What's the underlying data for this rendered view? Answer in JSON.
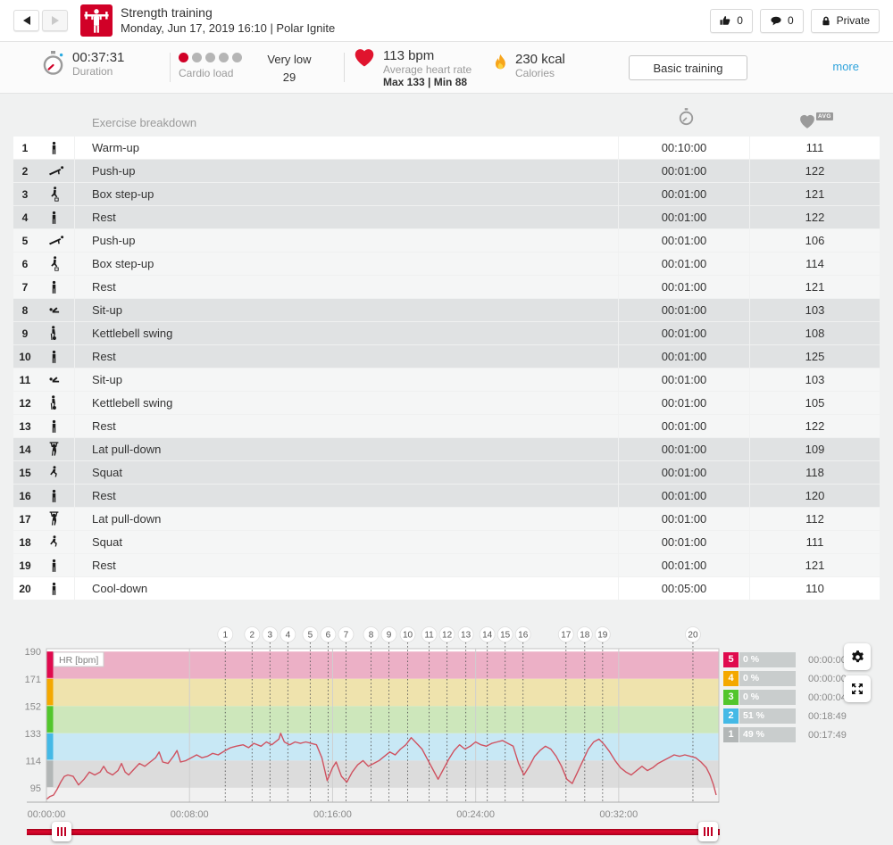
{
  "header": {
    "title": "Strength training",
    "subtitle": "Monday, Jun 17, 2019 16:10  |  Polar Ignite",
    "sport_icon": "strength-training-icon",
    "actions": {
      "likes": "0",
      "comments": "0",
      "privacy": "Private"
    }
  },
  "stats": {
    "duration": {
      "value": "00:37:31",
      "label": "Duration"
    },
    "cardio_load": {
      "label": "Cardio load",
      "level": "Very low",
      "score": "29",
      "dots_total": 5,
      "dots_active": 1
    },
    "heart_rate": {
      "value": "113 bpm",
      "label": "Average heart rate",
      "max_min": "Max 133  |  Min 88"
    },
    "calories": {
      "value": "230 kcal",
      "label": "Calories"
    },
    "training_benefit": "Basic training",
    "more_label": "more"
  },
  "table": {
    "header": {
      "breakdown": "Exercise breakdown",
      "hr_avg_label": "AVG"
    },
    "rows": [
      {
        "num": "1",
        "icon": "person-standing-icon",
        "name": "Warm-up",
        "duration": "00:10:00",
        "avg_hr": "111",
        "shade": "white"
      },
      {
        "num": "2",
        "icon": "push-up-icon",
        "name": "Push-up",
        "duration": "00:01:00",
        "avg_hr": "122",
        "shade": "gray"
      },
      {
        "num": "3",
        "icon": "box-step-up-icon",
        "name": "Box step-up",
        "duration": "00:01:00",
        "avg_hr": "121",
        "shade": "gray"
      },
      {
        "num": "4",
        "icon": "person-standing-icon",
        "name": "Rest",
        "duration": "00:01:00",
        "avg_hr": "122",
        "shade": "gray"
      },
      {
        "num": "5",
        "icon": "push-up-icon",
        "name": "Push-up",
        "duration": "00:01:00",
        "avg_hr": "106",
        "shade": "light"
      },
      {
        "num": "6",
        "icon": "box-step-up-icon",
        "name": "Box step-up",
        "duration": "00:01:00",
        "avg_hr": "114",
        "shade": "light"
      },
      {
        "num": "7",
        "icon": "person-standing-icon",
        "name": "Rest",
        "duration": "00:01:00",
        "avg_hr": "121",
        "shade": "light"
      },
      {
        "num": "8",
        "icon": "sit-up-icon",
        "name": "Sit-up",
        "duration": "00:01:00",
        "avg_hr": "103",
        "shade": "gray"
      },
      {
        "num": "9",
        "icon": "kettlebell-swing-icon",
        "name": "Kettlebell swing",
        "duration": "00:01:00",
        "avg_hr": "108",
        "shade": "gray"
      },
      {
        "num": "10",
        "icon": "person-standing-icon",
        "name": "Rest",
        "duration": "00:01:00",
        "avg_hr": "125",
        "shade": "gray"
      },
      {
        "num": "11",
        "icon": "sit-up-icon",
        "name": "Sit-up",
        "duration": "00:01:00",
        "avg_hr": "103",
        "shade": "light"
      },
      {
        "num": "12",
        "icon": "kettlebell-swing-icon",
        "name": "Kettlebell swing",
        "duration": "00:01:00",
        "avg_hr": "105",
        "shade": "light"
      },
      {
        "num": "13",
        "icon": "person-standing-icon",
        "name": "Rest",
        "duration": "00:01:00",
        "avg_hr": "122",
        "shade": "light"
      },
      {
        "num": "14",
        "icon": "lat-pull-down-icon",
        "name": "Lat pull-down",
        "duration": "00:01:00",
        "avg_hr": "109",
        "shade": "gray"
      },
      {
        "num": "15",
        "icon": "squat-icon",
        "name": "Squat",
        "duration": "00:01:00",
        "avg_hr": "118",
        "shade": "gray"
      },
      {
        "num": "16",
        "icon": "person-standing-icon",
        "name": "Rest",
        "duration": "00:01:00",
        "avg_hr": "120",
        "shade": "gray"
      },
      {
        "num": "17",
        "icon": "lat-pull-down-icon",
        "name": "Lat pull-down",
        "duration": "00:01:00",
        "avg_hr": "112",
        "shade": "light"
      },
      {
        "num": "18",
        "icon": "squat-icon",
        "name": "Squat",
        "duration": "00:01:00",
        "avg_hr": "111",
        "shade": "light"
      },
      {
        "num": "19",
        "icon": "person-standing-icon",
        "name": "Rest",
        "duration": "00:01:00",
        "avg_hr": "121",
        "shade": "light"
      },
      {
        "num": "20",
        "icon": "person-standing-icon",
        "name": "Cool-down",
        "duration": "00:05:00",
        "avg_hr": "110",
        "shade": "white"
      }
    ]
  },
  "chart_data": {
    "type": "line",
    "title": "HR [bpm]",
    "xlabel": "",
    "ylabel": "HR [bpm]",
    "x_ticks": [
      "00:00:00",
      "00:08:00",
      "00:16:00",
      "00:24:00",
      "00:32:00"
    ],
    "x_tick_minutes": [
      0,
      8,
      16,
      24,
      32
    ],
    "xlim_minutes": [
      0,
      37.6
    ],
    "y_ticks": [
      190,
      171,
      152,
      133,
      114,
      95
    ],
    "ylim": [
      85,
      192
    ],
    "grid": "vertical gridlines every 8 minutes",
    "legend_position": "right",
    "line_color": "#cf5260",
    "zones": [
      {
        "zone": "5",
        "range": [
          171,
          190
        ],
        "band_color": "#ecb0c6",
        "color": "#e00a4e",
        "percent": "0 %",
        "pct": 0,
        "time": "00:00:00"
      },
      {
        "zone": "4",
        "range": [
          152,
          171
        ],
        "band_color": "#efe3ad",
        "color": "#f4a800",
        "percent": "0 %",
        "pct": 0,
        "time": "00:00:00"
      },
      {
        "zone": "3",
        "range": [
          133,
          152
        ],
        "band_color": "#cde7bb",
        "color": "#52c62c",
        "percent": "0 %",
        "pct": 0,
        "time": "00:00:04"
      },
      {
        "zone": "2",
        "range": [
          114,
          133
        ],
        "band_color": "#c8e8f5",
        "color": "#44b9e6",
        "percent": "51 %",
        "pct": 51,
        "time": "00:18:49"
      },
      {
        "zone": "1",
        "range": [
          95,
          114
        ],
        "band_color": "#dcdcdc",
        "color": "#b2b6b6",
        "percent": "49 %",
        "pct": 49,
        "time": "00:17:49"
      }
    ],
    "phase_markers": [
      {
        "label": "1",
        "t": 10.0
      },
      {
        "label": "2",
        "t": 11.5
      },
      {
        "label": "3",
        "t": 12.5
      },
      {
        "label": "4",
        "t": 13.5
      },
      {
        "label": "5",
        "t": 14.75
      },
      {
        "label": "6",
        "t": 15.75
      },
      {
        "label": "7",
        "t": 16.75
      },
      {
        "label": "8",
        "t": 18.15
      },
      {
        "label": "9",
        "t": 19.15
      },
      {
        "label": "10",
        "t": 20.2
      },
      {
        "label": "11",
        "t": 21.4
      },
      {
        "label": "12",
        "t": 22.4
      },
      {
        "label": "13",
        "t": 23.45
      },
      {
        "label": "14",
        "t": 24.65
      },
      {
        "label": "15",
        "t": 25.65
      },
      {
        "label": "16",
        "t": 26.65
      },
      {
        "label": "17",
        "t": 29.05
      },
      {
        "label": "18",
        "t": 30.1
      },
      {
        "label": "19",
        "t": 31.1
      },
      {
        "label": "20",
        "t": 36.15
      }
    ],
    "series": [
      {
        "name": "Heart rate",
        "points": [
          [
            0,
            87
          ],
          [
            0.2,
            89
          ],
          [
            0.4,
            90
          ],
          [
            0.6,
            94
          ],
          [
            0.8,
            99
          ],
          [
            1,
            103
          ],
          [
            1.2,
            104
          ],
          [
            1.5,
            103
          ],
          [
            1.8,
            97
          ],
          [
            2.1,
            101
          ],
          [
            2.4,
            106
          ],
          [
            2.7,
            104
          ],
          [
            3,
            106
          ],
          [
            3.2,
            110
          ],
          [
            3.4,
            106
          ],
          [
            3.7,
            104
          ],
          [
            4,
            107
          ],
          [
            4.2,
            112
          ],
          [
            4.4,
            106
          ],
          [
            4.6,
            104
          ],
          [
            4.9,
            108
          ],
          [
            5.2,
            112
          ],
          [
            5.5,
            110
          ],
          [
            5.8,
            113
          ],
          [
            6.1,
            116
          ],
          [
            6.3,
            120
          ],
          [
            6.5,
            113
          ],
          [
            6.8,
            112
          ],
          [
            7.1,
            117
          ],
          [
            7.3,
            121
          ],
          [
            7.5,
            113
          ],
          [
            7.8,
            114
          ],
          [
            8.1,
            116
          ],
          [
            8.4,
            118
          ],
          [
            8.7,
            116
          ],
          [
            9,
            117
          ],
          [
            9.3,
            119
          ],
          [
            9.6,
            118
          ],
          [
            10,
            121
          ],
          [
            10.3,
            123
          ],
          [
            10.6,
            124
          ],
          [
            11,
            125
          ],
          [
            11.3,
            123
          ],
          [
            11.6,
            126
          ],
          [
            12,
            124
          ],
          [
            12.3,
            127
          ],
          [
            12.6,
            125
          ],
          [
            13,
            129
          ],
          [
            13.1,
            133
          ],
          [
            13.3,
            127
          ],
          [
            13.6,
            125
          ],
          [
            13.9,
            127
          ],
          [
            14.2,
            126
          ],
          [
            14.5,
            127
          ],
          [
            14.8,
            126
          ],
          [
            15.1,
            125
          ],
          [
            15.4,
            116
          ],
          [
            15.7,
            100
          ],
          [
            16,
            109
          ],
          [
            16.2,
            113
          ],
          [
            16.5,
            103
          ],
          [
            16.8,
            99
          ],
          [
            17.1,
            106
          ],
          [
            17.4,
            111
          ],
          [
            17.7,
            114
          ],
          [
            18,
            110
          ],
          [
            18.3,
            112
          ],
          [
            18.6,
            114
          ],
          [
            18.9,
            117
          ],
          [
            19.2,
            120
          ],
          [
            19.5,
            118
          ],
          [
            19.8,
            122
          ],
          [
            20.1,
            125
          ],
          [
            20.4,
            130
          ],
          [
            20.7,
            126
          ],
          [
            21,
            122
          ],
          [
            21.3,
            115
          ],
          [
            21.6,
            108
          ],
          [
            21.9,
            101
          ],
          [
            22.2,
            108
          ],
          [
            22.5,
            115
          ],
          [
            22.8,
            121
          ],
          [
            23.1,
            125
          ],
          [
            23.4,
            122
          ],
          [
            23.7,
            124
          ],
          [
            24,
            127
          ],
          [
            24.3,
            125
          ],
          [
            24.6,
            124
          ],
          [
            24.9,
            126
          ],
          [
            25.2,
            127
          ],
          [
            25.5,
            128
          ],
          [
            25.8,
            126
          ],
          [
            26.1,
            124
          ],
          [
            26.4,
            112
          ],
          [
            26.7,
            104
          ],
          [
            27,
            110
          ],
          [
            27.3,
            117
          ],
          [
            27.6,
            121
          ],
          [
            27.9,
            124
          ],
          [
            28.2,
            122
          ],
          [
            28.5,
            117
          ],
          [
            28.8,
            110
          ],
          [
            29.1,
            101
          ],
          [
            29.4,
            98
          ],
          [
            29.7,
            106
          ],
          [
            30,
            114
          ],
          [
            30.3,
            122
          ],
          [
            30.6,
            127
          ],
          [
            30.9,
            129
          ],
          [
            31.2,
            125
          ],
          [
            31.5,
            120
          ],
          [
            31.8,
            114
          ],
          [
            32.1,
            109
          ],
          [
            32.4,
            106
          ],
          [
            32.7,
            104
          ],
          [
            33,
            107
          ],
          [
            33.3,
            110
          ],
          [
            33.6,
            107
          ],
          [
            33.9,
            109
          ],
          [
            34.2,
            112
          ],
          [
            34.5,
            114
          ],
          [
            34.8,
            116
          ],
          [
            35.1,
            118
          ],
          [
            35.4,
            117
          ],
          [
            35.7,
            118
          ],
          [
            36,
            117
          ],
          [
            36.3,
            116
          ],
          [
            36.6,
            113
          ],
          [
            36.9,
            109
          ],
          [
            37.1,
            104
          ],
          [
            37.3,
            97
          ],
          [
            37.45,
            90
          ]
        ]
      }
    ]
  }
}
